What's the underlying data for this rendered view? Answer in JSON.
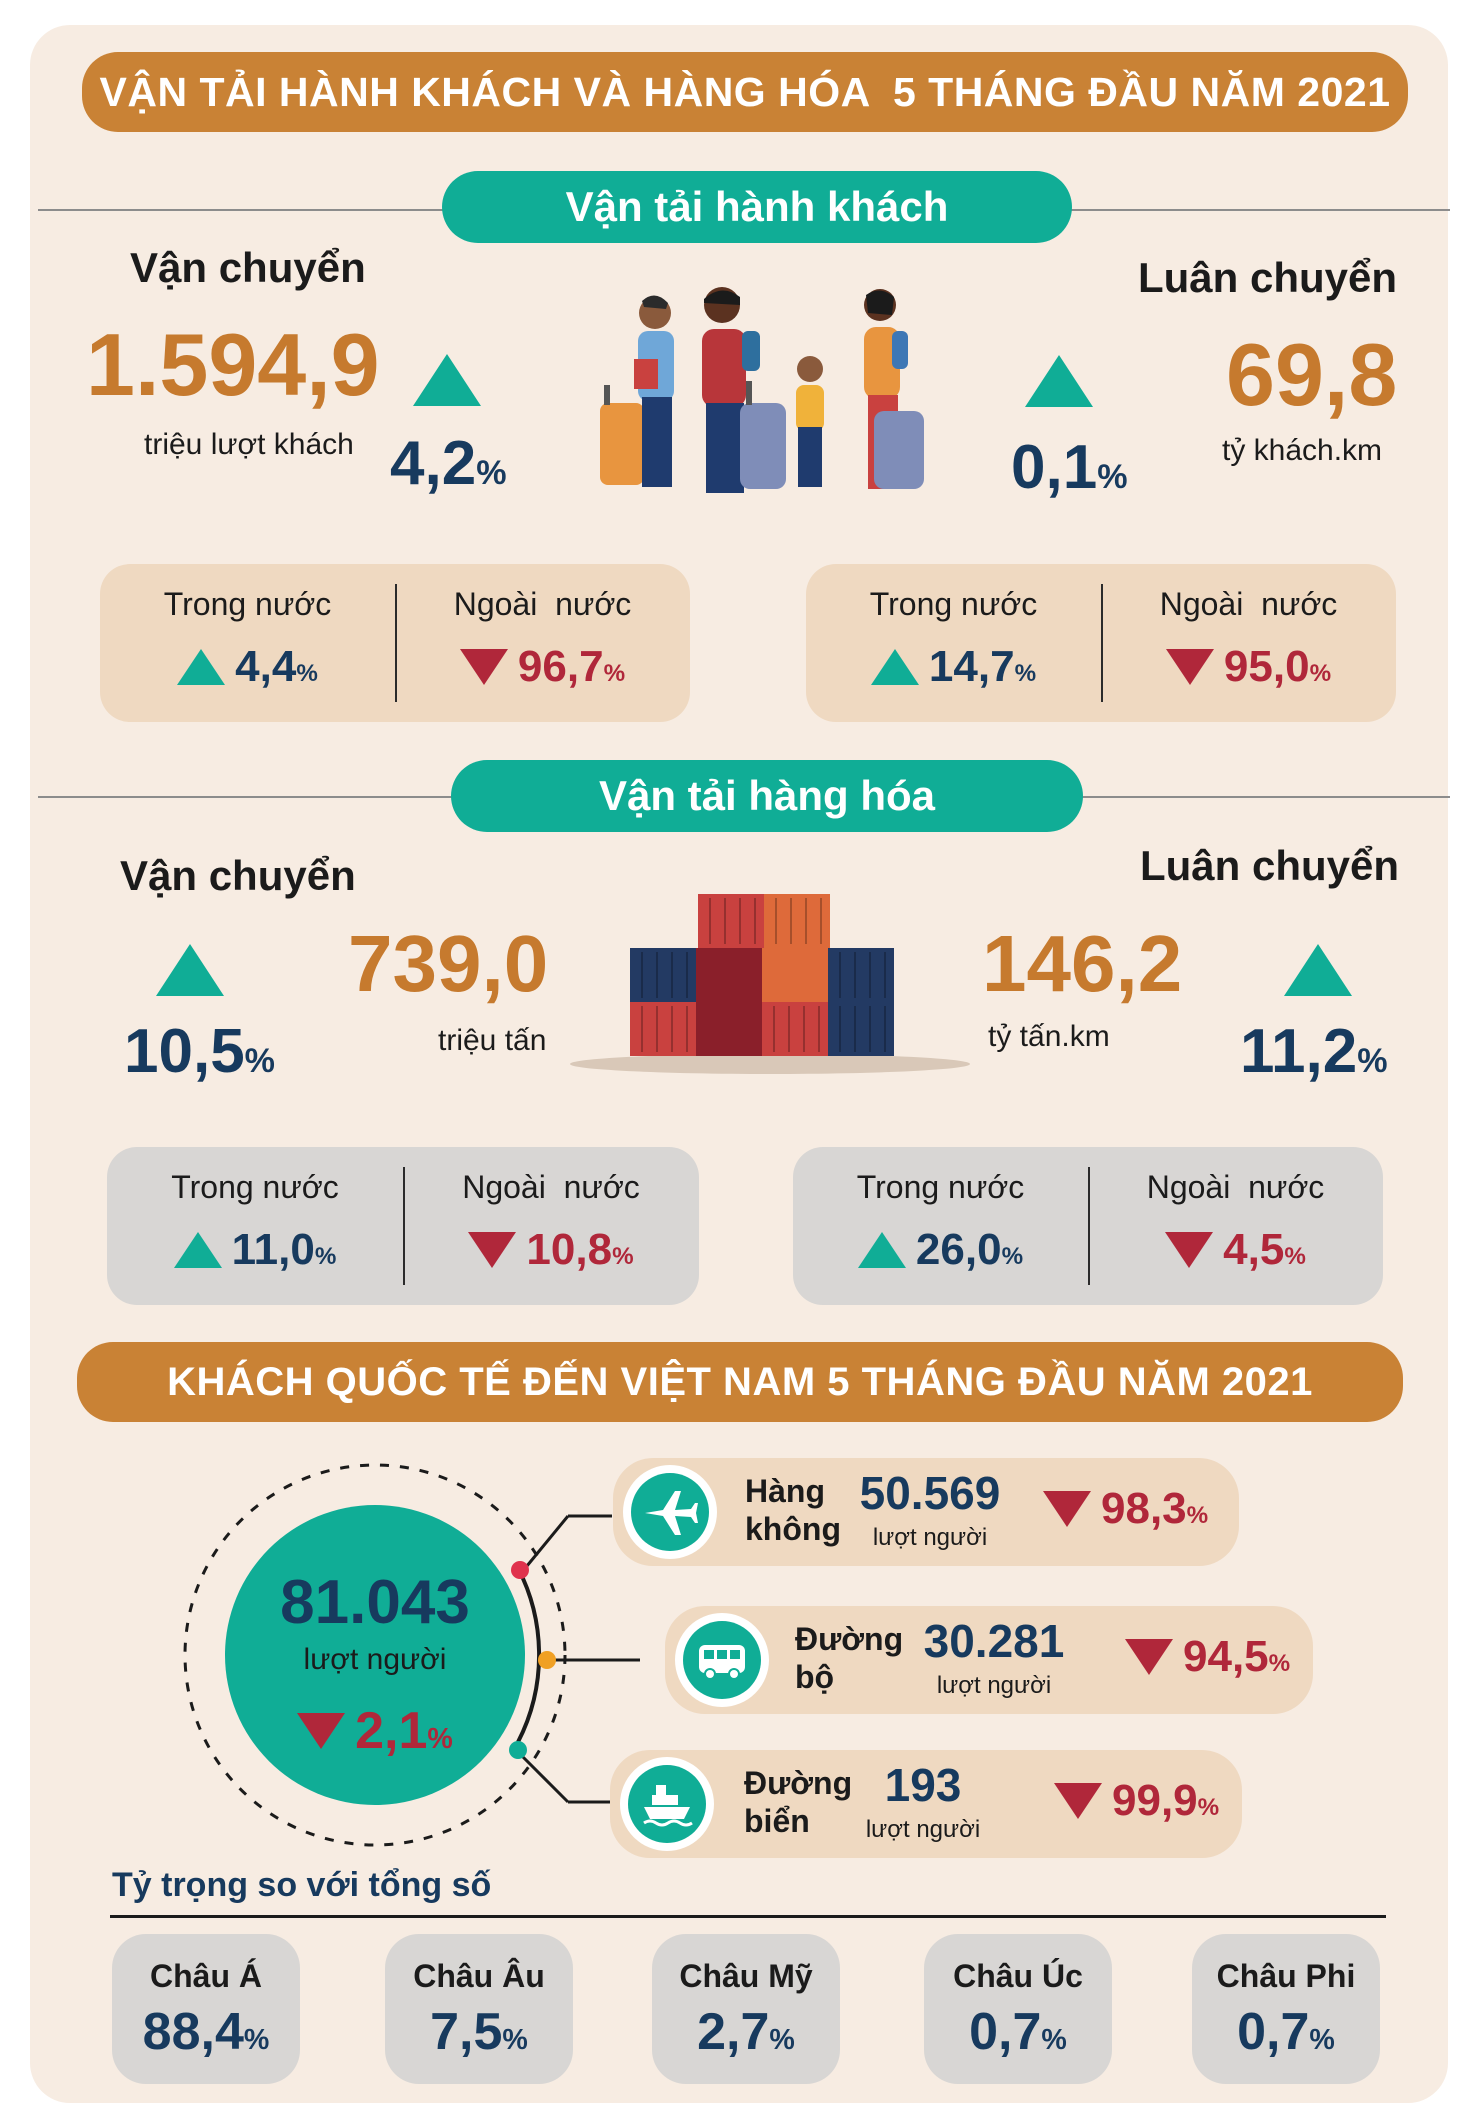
{
  "title": "VẬN TẢI HÀNH KHÁCH VÀ HÀNG HÓA  5 THÁNG ĐẦU NĂM 2021",
  "passenger": {
    "section_label": "Vận tải hành khách",
    "transport": {
      "label": "Vận chuyển",
      "value": "1.594,9",
      "unit": "triệu lượt khách",
      "change": "4,2",
      "pct": "%"
    },
    "rotation": {
      "label": "Luân chuyển",
      "value": "69,8",
      "unit": "tỷ khách.km",
      "change": "0,1",
      "pct": "%"
    },
    "transport_breakdown": {
      "domestic_label": "Trong nước",
      "domestic_change": "4,4",
      "foreign_label": "Ngoài  nước",
      "foreign_change": "96,7"
    },
    "rotation_breakdown": {
      "domestic_label": "Trong nước",
      "domestic_change": "14,7",
      "foreign_label": "Ngoài  nước",
      "foreign_change": "95,0"
    }
  },
  "cargo": {
    "section_label": "Vận tải hàng hóa",
    "transport": {
      "label": "Vận chuyển",
      "value": "739,0",
      "unit": "triệu tấn",
      "change": "10,5",
      "pct": "%"
    },
    "rotation": {
      "label": "Luân chuyển",
      "value": "146,2",
      "unit": "tỷ tấn.km",
      "change": "11,2",
      "pct": "%"
    },
    "transport_breakdown": {
      "domestic_label": "Trong nước",
      "domestic_change": "11,0",
      "foreign_label": "Ngoài  nước",
      "foreign_change": "10,8"
    },
    "rotation_breakdown": {
      "domestic_label": "Trong nước",
      "domestic_change": "26,0",
      "foreign_label": "Ngoài  nước",
      "foreign_change": "4,5"
    }
  },
  "visitors": {
    "title": "KHÁCH QUỐC TẾ ĐẾN VIỆT NAM 5 THÁNG ĐẦU NĂM 2021",
    "total": "81.043",
    "total_unit": "lượt người",
    "total_change": "2,1",
    "modes": [
      {
        "name_line1": "Hàng",
        "name_line2": "không",
        "value": "50.569",
        "unit": "lượt người",
        "change": "98,3",
        "icon": "airplane-icon"
      },
      {
        "name_line1": "Đường",
        "name_line2": "bộ",
        "value": "30.281",
        "unit": "lượt người",
        "change": "94,5",
        "icon": "bus-icon"
      },
      {
        "name_line1": "Đường",
        "name_line2": "biển",
        "value": "193",
        "unit": "lượt người",
        "change": "99,9",
        "icon": "ship-icon"
      }
    ],
    "share_label": "Tỷ trọng so với tổng số",
    "continents": [
      {
        "name": "Châu Á",
        "value": "88,4"
      },
      {
        "name": "Châu Âu",
        "value": "7,5"
      },
      {
        "name": "Châu Mỹ",
        "value": "2,7"
      },
      {
        "name": "Châu Úc",
        "value": "0,7"
      },
      {
        "name": "Châu Phi",
        "value": "0,7"
      }
    ]
  },
  "pct_symbol": "%",
  "colors": {
    "teal": "#10ad96",
    "orange": "#c98235",
    "navy": "#173a5e",
    "red": "#b0273a",
    "background": "#f7ece2"
  }
}
